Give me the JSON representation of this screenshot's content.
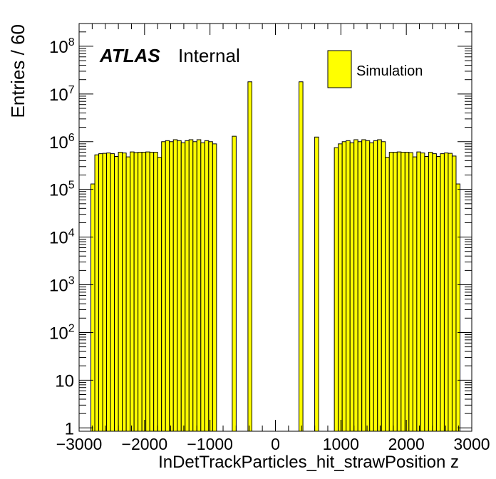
{
  "chart_data": {
    "type": "bar",
    "style": "histogram",
    "ylabel": "Entries / 60",
    "xlabel": "InDetTrackParticles_hit_strawPosition z",
    "x_range": [
      -3000,
      3000
    ],
    "y_range": [
      0.85,
      300000000
    ],
    "y_scale": "log",
    "x_ticks": [
      "−3000",
      "−2000",
      "−1000",
      "0",
      "1000",
      "2000",
      "3000"
    ],
    "y_ticks": [
      {
        "value": 1,
        "label": "1"
      },
      {
        "value": 10,
        "label": "10"
      },
      {
        "value": 100,
        "base": "10",
        "exp": "2"
      },
      {
        "value": 1000,
        "base": "10",
        "exp": "3"
      },
      {
        "value": 10000,
        "base": "10",
        "exp": "4"
      },
      {
        "value": 100000,
        "base": "10",
        "exp": "5"
      },
      {
        "value": 1000000,
        "base": "10",
        "exp": "6"
      },
      {
        "value": 10000000,
        "base": "10",
        "exp": "7"
      },
      {
        "value": 100000000,
        "base": "10",
        "exp": "8"
      }
    ],
    "fill_color": "#ffff00",
    "line_color": "#000000",
    "bin_width": 60,
    "atlas_label": "ATLAS",
    "atlas_status": "Internal",
    "series": [
      {
        "name": "Simulation",
        "bins": [
          [
            -2820,
            130000
          ],
          [
            -2760,
            530000
          ],
          [
            -2700,
            560000
          ],
          [
            -2640,
            570000
          ],
          [
            -2580,
            580000
          ],
          [
            -2520,
            560000
          ],
          [
            -2460,
            490000
          ],
          [
            -2400,
            600000
          ],
          [
            -2340,
            580000
          ],
          [
            -2280,
            480000
          ],
          [
            -2220,
            610000
          ],
          [
            -2160,
            590000
          ],
          [
            -2100,
            600000
          ],
          [
            -2040,
            600000
          ],
          [
            -1980,
            610000
          ],
          [
            -1920,
            600000
          ],
          [
            -1860,
            600000
          ],
          [
            -1800,
            470000
          ],
          [
            -1740,
            1000000
          ],
          [
            -1680,
            1050000
          ],
          [
            -1620,
            1000000
          ],
          [
            -1560,
            1100000
          ],
          [
            -1500,
            1050000
          ],
          [
            -1440,
            950000
          ],
          [
            -1380,
            1050000
          ],
          [
            -1320,
            1100000
          ],
          [
            -1260,
            1000000
          ],
          [
            -1200,
            1100000
          ],
          [
            -1140,
            950000
          ],
          [
            -1080,
            1050000
          ],
          [
            -1020,
            1000000
          ],
          [
            -960,
            900000
          ],
          [
            -660,
            1300000
          ],
          [
            -420,
            18000000
          ],
          [
            360,
            18000000
          ],
          [
            600,
            1250000
          ],
          [
            900,
            750000
          ],
          [
            960,
            900000
          ],
          [
            1020,
            1000000
          ],
          [
            1080,
            1050000
          ],
          [
            1140,
            950000
          ],
          [
            1200,
            1100000
          ],
          [
            1260,
            1000000
          ],
          [
            1320,
            1100000
          ],
          [
            1380,
            1050000
          ],
          [
            1440,
            950000
          ],
          [
            1500,
            1050000
          ],
          [
            1560,
            1100000
          ],
          [
            1620,
            1000000
          ],
          [
            1680,
            470000
          ],
          [
            1740,
            600000
          ],
          [
            1800,
            600000
          ],
          [
            1860,
            610000
          ],
          [
            1920,
            600000
          ],
          [
            1980,
            600000
          ],
          [
            2040,
            590000
          ],
          [
            2100,
            480000
          ],
          [
            2160,
            610000
          ],
          [
            2220,
            580000
          ],
          [
            2280,
            490000
          ],
          [
            2340,
            600000
          ],
          [
            2400,
            560000
          ],
          [
            2460,
            490000
          ],
          [
            2520,
            560000
          ],
          [
            2580,
            580000
          ],
          [
            2640,
            570000
          ],
          [
            2700,
            500000
          ],
          [
            2760,
            130000
          ]
        ]
      }
    ]
  }
}
